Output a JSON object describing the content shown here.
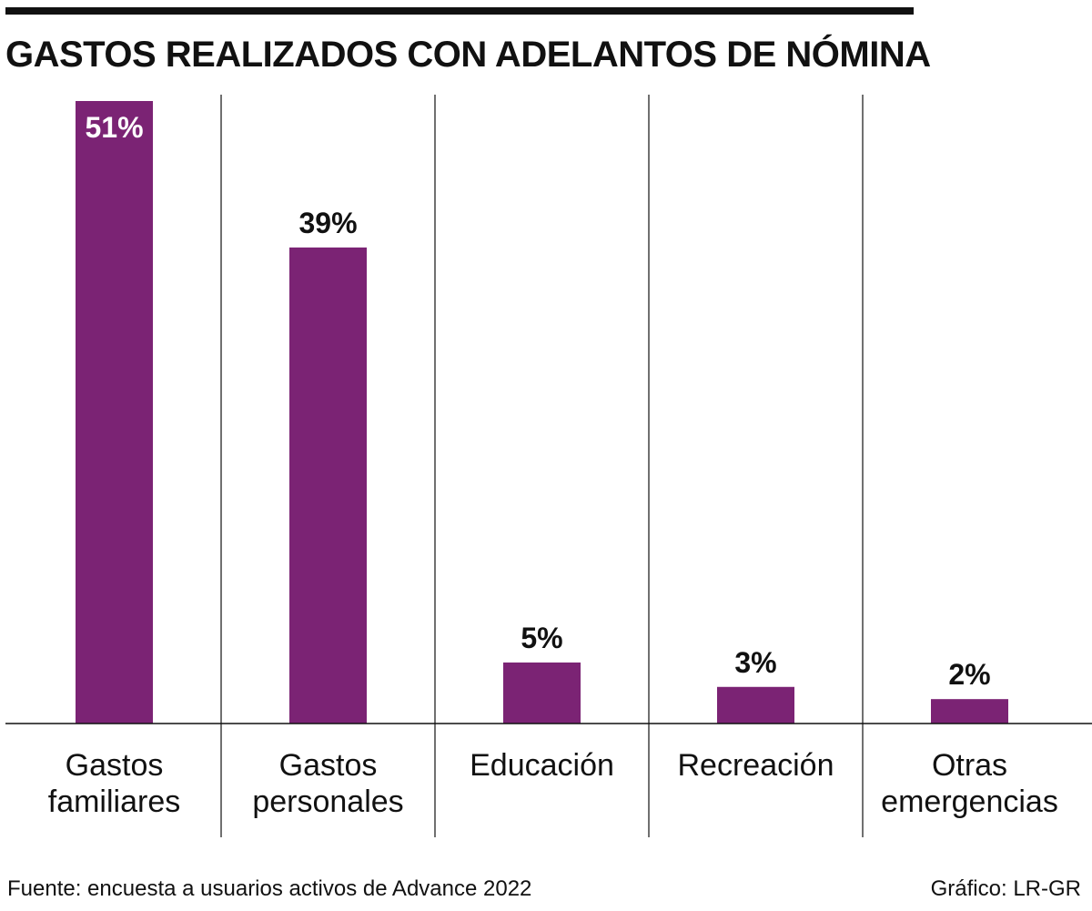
{
  "title": "GASTOS REALIZADOS CON ADELANTOS DE NÓMINA",
  "footer": {
    "source": "Fuente: encuesta a usuarios activos de Advance 2022",
    "credit": "Gráfico: LR-GR"
  },
  "colors": {
    "bar": "#7b2374",
    "text": "#111111",
    "label_inside": "#ffffff",
    "rule": "#111111"
  },
  "chart_data": {
    "type": "bar",
    "title": "GASTOS REALIZADOS CON ADELANTOS DE NÓMINA",
    "categories": [
      [
        "Gastos",
        "familiares"
      ],
      [
        "Gastos",
        "personales"
      ],
      [
        "Educación"
      ],
      [
        "Recreación"
      ],
      [
        "Otras",
        "emergencias"
      ]
    ],
    "values": [
      51,
      39,
      5,
      3,
      2
    ],
    "value_labels": [
      "51%",
      "39%",
      "5%",
      "3%",
      "2%"
    ],
    "unit": "%",
    "ylim": [
      0,
      51
    ],
    "grid": false,
    "legend": "none"
  }
}
